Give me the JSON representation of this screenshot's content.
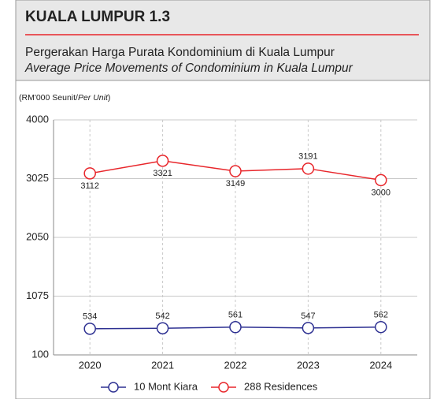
{
  "chart_data": {
    "type": "line",
    "title": "KUALA LUMPUR 1.3",
    "subtitle": "Pergerakan Harga Purata Kondominium di Kuala Lumpur",
    "subtitle_en": "Average Price Movements of Condominium in Kuala Lumpur",
    "y_unit": "(RM'000 Seunit/",
    "y_unit_italic": "Per Unit",
    "y_unit_end": ")",
    "categories": [
      "2020",
      "2021",
      "2022",
      "2023",
      "2024"
    ],
    "series": [
      {
        "name": "10 Mont Kiara",
        "color": "#2e3192",
        "values": [
          534,
          542,
          561,
          547,
          562
        ]
      },
      {
        "name": "288 Residences",
        "color": "#e8262b",
        "values": [
          3112,
          3321,
          3149,
          3191,
          3000
        ]
      }
    ],
    "ylim": [
      100,
      4000
    ],
    "yticks": [
      100,
      1075,
      2050,
      3025,
      4000
    ],
    "grid": true,
    "legend": "bottom"
  }
}
